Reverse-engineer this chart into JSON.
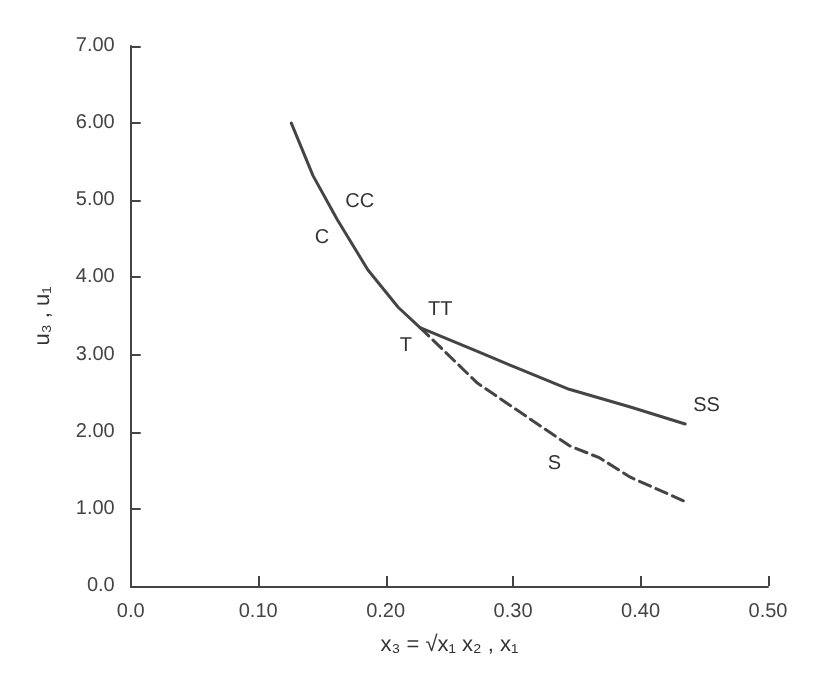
{
  "chart_data": {
    "type": "line",
    "xlabel": "x₃ = √x₁ x₂ , x₁",
    "ylabel": "u₃ , u₁",
    "xlim": [
      0,
      0.5
    ],
    "ylim": [
      0,
      7
    ],
    "xticks": [
      {
        "value": 0,
        "label": "0.0"
      },
      {
        "value": 0.1,
        "label": "0.10"
      },
      {
        "value": 0.2,
        "label": "0.20"
      },
      {
        "value": 0.3,
        "label": "0.30"
      },
      {
        "value": 0.4,
        "label": "0.40"
      },
      {
        "value": 0.5,
        "label": "0.50"
      }
    ],
    "yticks": [
      {
        "value": 0,
        "label": "0.0"
      },
      {
        "value": 1,
        "label": "1.00"
      },
      {
        "value": 2,
        "label": "2.00"
      },
      {
        "value": 3,
        "label": "3.00"
      },
      {
        "value": 4,
        "label": "4.00"
      },
      {
        "value": 5,
        "label": "5.00"
      },
      {
        "value": 6,
        "label": "6.00"
      },
      {
        "value": 7,
        "label": "7.00"
      }
    ],
    "series": [
      {
        "color": "#444444",
        "line_style": "solid",
        "x": [
          0.126,
          0.143,
          0.162,
          0.186,
          0.21,
          0.227,
          0.272,
          0.301,
          0.344,
          0.392,
          0.435
        ],
        "values": [
          6.0,
          5.32,
          4.75,
          4.1,
          3.61,
          3.35,
          3.04,
          2.84,
          2.55,
          2.32,
          2.1
        ]
      },
      {
        "color": "#444444",
        "line_style": "dashed",
        "x": [
          0.227,
          0.272,
          0.344,
          0.368,
          0.392,
          0.437
        ],
        "values": [
          3.35,
          2.63,
          1.82,
          1.66,
          1.41,
          1.08
        ]
      }
    ],
    "annotations": [
      {
        "text": "CC",
        "x": 0.162,
        "y": 4.75
      },
      {
        "text": "C",
        "x": 0.162,
        "y": 4.75
      },
      {
        "text": "TT",
        "x": 0.227,
        "y": 3.35
      },
      {
        "text": "T",
        "x": 0.227,
        "y": 3.35
      },
      {
        "text": "SS",
        "x": 0.435,
        "y": 2.1
      },
      {
        "text": "S",
        "x": 0.344,
        "y": 1.82
      }
    ],
    "grid": false,
    "marker": "none"
  }
}
